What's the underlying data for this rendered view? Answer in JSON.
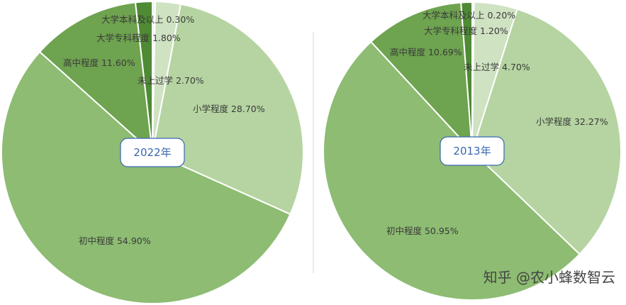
{
  "chart_data": [
    {
      "type": "pie",
      "center_label": "2022年",
      "slices": [
        {
          "name": "大学本科及以上",
          "value": 0.3,
          "label": "大学本科及以上 0.30%",
          "color": "#ecf4e6"
        },
        {
          "name": "未上过学",
          "value": 2.7,
          "label": "未上过学 2.70%",
          "color": "#cfe2c2"
        },
        {
          "name": "小学程度",
          "value": 28.7,
          "label": "小学程度 28.70%",
          "color": "#b5d4a1"
        },
        {
          "name": "初中程度",
          "value": 54.9,
          "label": "初中程度 54.90%",
          "color": "#8dbc72"
        },
        {
          "name": "高中程度",
          "value": 11.6,
          "label": "高中程度 11.60%",
          "color": "#6ea34f"
        },
        {
          "name": "大学专科程度",
          "value": 1.8,
          "label": "大学专科程度 1.80%",
          "color": "#4f8a34"
        }
      ]
    },
    {
      "type": "pie",
      "center_label": "2013年",
      "slices": [
        {
          "name": "大学本科及以上",
          "value": 0.2,
          "label": "大学本科及以上 0.20%",
          "color": "#ecf4e6"
        },
        {
          "name": "未上过学",
          "value": 4.7,
          "label": "未上过学 4.70%",
          "color": "#cfe2c2"
        },
        {
          "name": "小学程度",
          "value": 32.27,
          "label": "小学程度 32.27%",
          "color": "#b5d4a1"
        },
        {
          "name": "初中程度",
          "value": 50.95,
          "label": "初中程度 50.95%",
          "color": "#8dbc72"
        },
        {
          "name": "高中程度",
          "value": 10.69,
          "label": "高中程度 10.69%",
          "color": "#6ea34f"
        },
        {
          "name": "大学专科程度",
          "value": 1.2,
          "label": "大学专科程度 1.20%",
          "color": "#4f8a34"
        }
      ]
    }
  ],
  "watermark": "知乎 @农小蜂数智云",
  "colors": {
    "divider": "#d9d9d9",
    "center_border": "#3a67b0",
    "accent": "#3a67b0"
  }
}
